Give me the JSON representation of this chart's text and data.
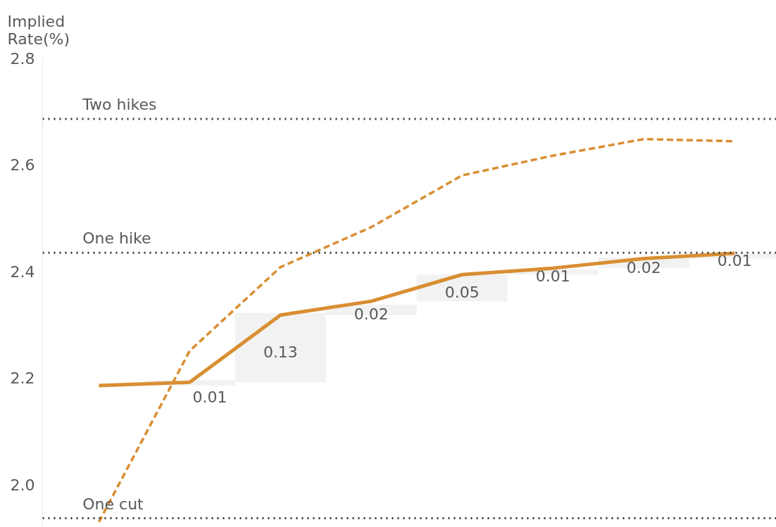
{
  "chart_data": {
    "type": "line",
    "ylabel": "Implied Rate(%)",
    "categories": [
      null,
      null,
      null,
      null,
      null,
      null,
      null,
      null
    ],
    "series": [
      {
        "type": "bar",
        "color": "#f2f2f2",
        "values": [
          null,
          0.01,
          0.13,
          0.02,
          0.05,
          0.01,
          0.02,
          0.01
        ],
        "base": [
          null,
          2.186,
          2.192,
          2.318,
          2.344,
          2.394,
          2.406,
          2.424
        ],
        "data_labels": true
      },
      {
        "color": "#d98e32",
        "line_style": "solid",
        "values": [
          2.186,
          2.192,
          2.318,
          2.344,
          2.394,
          2.406,
          2.424,
          2.434
        ]
      },
      {
        "color": "#d98e32",
        "line_style": "dashed",
        "values": [
          1.93,
          2.251,
          2.408,
          2.483,
          2.58,
          2.617,
          2.648,
          2.644
        ]
      }
    ],
    "ylim": [
      1.92,
      2.8
    ],
    "yticks": [
      {
        "value": 2.0,
        "label": "2.0"
      },
      2.2,
      2.4,
      2.6,
      2.8
    ],
    "tick_labels": "y",
    "grid": false,
    "marker": "none",
    "ref_lines": [
      {
        "axis": "y",
        "value": 2.686,
        "label": "Two hikes",
        "color": "#333333",
        "line_style": "dotted"
      },
      {
        "axis": "y",
        "value": 2.435,
        "label": "One hike",
        "color": "#333333",
        "line_style": "dotted"
      },
      {
        "axis": "y",
        "value": 1.937,
        "label": "One cut",
        "color": "#333333",
        "line_style": "dotted"
      }
    ]
  }
}
